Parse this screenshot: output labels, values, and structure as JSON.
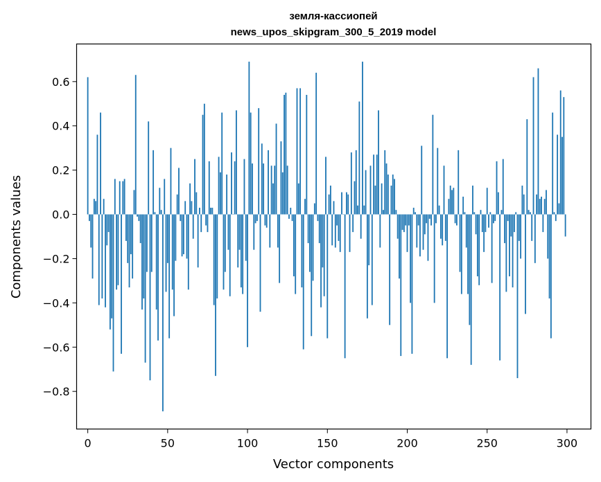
{
  "chart_data": {
    "type": "bar",
    "title_line1": "земля-кассиопей",
    "title_line2": "news_upos_skipgram_300_5_2019 model",
    "xlabel": "Vector components",
    "ylabel": "Components values",
    "xlim": [
      -7,
      315
    ],
    "ylim": [
      -0.97,
      0.77
    ],
    "xticks": [
      0,
      50,
      100,
      150,
      200,
      250,
      300
    ],
    "xtick_labels": [
      "0",
      "50",
      "100",
      "150",
      "200",
      "250",
      "300"
    ],
    "yticks": [
      -0.8,
      -0.6,
      -0.4,
      -0.2,
      0.0,
      0.2,
      0.4,
      0.6
    ],
    "ytick_labels": [
      "−0.8",
      "−0.6",
      "−0.4",
      "−0.2",
      "0.0",
      "0.2",
      "0.4",
      "0.6"
    ],
    "bar_color": "#1f77b4",
    "grid": false,
    "x": [
      0,
      1,
      2,
      3,
      4,
      5,
      6,
      7,
      8,
      9,
      10,
      11,
      12,
      13,
      14,
      15,
      16,
      17,
      18,
      19,
      20,
      21,
      22,
      23,
      24,
      25,
      26,
      27,
      28,
      29,
      30,
      31,
      32,
      33,
      34,
      35,
      36,
      37,
      38,
      39,
      40,
      41,
      42,
      43,
      44,
      45,
      46,
      47,
      48,
      49,
      50,
      51,
      52,
      53,
      54,
      55,
      56,
      57,
      58,
      59,
      60,
      61,
      62,
      63,
      64,
      65,
      66,
      67,
      68,
      69,
      70,
      71,
      72,
      73,
      74,
      75,
      76,
      77,
      78,
      79,
      80,
      81,
      82,
      83,
      84,
      85,
      86,
      87,
      88,
      89,
      90,
      91,
      92,
      93,
      94,
      95,
      96,
      97,
      98,
      99,
      100,
      101,
      102,
      103,
      104,
      105,
      106,
      107,
      108,
      109,
      110,
      111,
      112,
      113,
      114,
      115,
      116,
      117,
      118,
      119,
      120,
      121,
      122,
      123,
      124,
      125,
      126,
      127,
      128,
      129,
      130,
      131,
      132,
      133,
      134,
      135,
      136,
      137,
      138,
      139,
      140,
      141,
      142,
      143,
      144,
      145,
      146,
      147,
      148,
      149,
      150,
      151,
      152,
      153,
      154,
      155,
      156,
      157,
      158,
      159,
      160,
      161,
      162,
      163,
      164,
      165,
      166,
      167,
      168,
      169,
      170,
      171,
      172,
      173,
      174,
      175,
      176,
      177,
      178,
      179,
      180,
      181,
      182,
      183,
      184,
      185,
      186,
      187,
      188,
      189,
      190,
      191,
      192,
      193,
      194,
      195,
      196,
      197,
      198,
      199,
      200,
      201,
      202,
      203,
      204,
      205,
      206,
      207,
      208,
      209,
      210,
      211,
      212,
      213,
      214,
      215,
      216,
      217,
      218,
      219,
      220,
      221,
      222,
      223,
      224,
      225,
      226,
      227,
      228,
      229,
      230,
      231,
      232,
      233,
      234,
      235,
      236,
      237,
      238,
      239,
      240,
      241,
      242,
      243,
      244,
      245,
      246,
      247,
      248,
      249,
      250,
      251,
      252,
      253,
      254,
      255,
      256,
      257,
      258,
      259,
      260,
      261,
      262,
      263,
      264,
      265,
      266,
      267,
      268,
      269,
      270,
      271,
      272,
      273,
      274,
      275,
      276,
      277,
      278,
      279,
      280,
      281,
      282,
      283,
      284,
      285,
      286,
      287,
      288,
      289,
      290,
      291,
      292,
      293,
      294,
      295,
      296,
      297,
      298,
      299
    ],
    "values": [
      0.62,
      -0.03,
      -0.15,
      -0.29,
      0.07,
      0.06,
      0.36,
      -0.41,
      0.46,
      -0.38,
      0.07,
      -0.42,
      -0.14,
      -0.08,
      -0.52,
      -0.47,
      -0.71,
      0.16,
      -0.34,
      -0.32,
      0.15,
      -0.63,
      0.15,
      0.16,
      -0.12,
      -0.22,
      -0.33,
      -0.18,
      -0.29,
      0.11,
      0.63,
      -0.01,
      -0.03,
      -0.13,
      -0.43,
      -0.38,
      -0.67,
      -0.26,
      0.42,
      -0.75,
      -0.26,
      0.29,
      0.01,
      -0.43,
      -0.57,
      0.12,
      0.02,
      -0.89,
      0.16,
      -0.35,
      -0.22,
      -0.56,
      0.3,
      -0.34,
      -0.46,
      -0.21,
      0.09,
      0.21,
      -0.03,
      -0.19,
      -0.18,
      0.06,
      -0.2,
      -0.34,
      0.14,
      0.06,
      -0.11,
      0.25,
      0.1,
      -0.24,
      0.03,
      -0.08,
      0.45,
      0.5,
      -0.05,
      -0.08,
      0.24,
      0.03,
      0.03,
      -0.41,
      -0.73,
      -0.38,
      0.26,
      0.19,
      0.46,
      -0.34,
      -0.26,
      0.18,
      -0.16,
      -0.37,
      0.28,
      0.0,
      0.24,
      0.47,
      -0.24,
      -0.16,
      -0.33,
      -0.36,
      0.25,
      -0.21,
      -0.6,
      0.69,
      0.46,
      0.23,
      -0.16,
      -0.04,
      -0.03,
      0.48,
      -0.44,
      0.32,
      0.23,
      -0.05,
      -0.06,
      0.29,
      -0.15,
      0.22,
      0.14,
      0.22,
      0.41,
      -0.15,
      -0.31,
      0.33,
      0.19,
      0.54,
      0.55,
      0.22,
      -0.02,
      0.03,
      -0.03,
      -0.28,
      -0.36,
      0.57,
      0.14,
      0.57,
      -0.33,
      -0.61,
      0.07,
      0.54,
      -0.13,
      -0.26,
      -0.55,
      -0.3,
      0.05,
      0.64,
      -0.03,
      -0.13,
      -0.42,
      -0.24,
      -0.37,
      0.26,
      -0.56,
      0.09,
      0.13,
      -0.14,
      0.06,
      -0.15,
      -0.05,
      -0.12,
      -0.17,
      0.1,
      0.0,
      -0.65,
      0.1,
      0.09,
      -0.17,
      0.28,
      -0.08,
      0.15,
      0.29,
      0.04,
      0.51,
      -0.11,
      0.69,
      0.04,
      0.2,
      -0.47,
      -0.23,
      0.22,
      -0.41,
      0.27,
      0.13,
      0.27,
      0.47,
      -0.15,
      0.14,
      0.02,
      0.29,
      0.23,
      0.18,
      -0.5,
      0.13,
      0.18,
      0.16,
      0.02,
      -0.11,
      -0.29,
      -0.64,
      -0.07,
      -0.08,
      -0.05,
      -0.17,
      -0.05,
      -0.4,
      -0.63,
      0.03,
      0.01,
      -0.15,
      -0.05,
      -0.19,
      0.31,
      -0.16,
      -0.09,
      -0.04,
      -0.21,
      -0.02,
      -0.05,
      0.45,
      -0.4,
      -0.04,
      0.3,
      0.04,
      -0.11,
      -0.14,
      0.22,
      -0.12,
      -0.65,
      0.07,
      0.13,
      0.11,
      0.12,
      -0.04,
      -0.05,
      0.29,
      -0.26,
      -0.36,
      0.08,
      0.01,
      -0.15,
      -0.36,
      -0.5,
      -0.68,
      0.13,
      0.01,
      -0.09,
      -0.28,
      -0.32,
      0.02,
      -0.08,
      -0.17,
      -0.08,
      0.12,
      -0.06,
      0.01,
      -0.31,
      -0.04,
      -0.03,
      0.24,
      0.1,
      -0.66,
      0.02,
      0.25,
      -0.13,
      -0.35,
      -0.03,
      -0.28,
      -0.1,
      -0.33,
      -0.08,
      0.01,
      -0.74,
      -0.12,
      -0.2,
      0.13,
      0.09,
      -0.45,
      0.43,
      0.02,
      0.01,
      -0.12,
      0.62,
      -0.22,
      0.09,
      0.66,
      0.07,
      0.08,
      -0.08,
      0.07,
      0.11,
      -0.2,
      -0.38,
      -0.56,
      0.46,
      0.01,
      -0.03,
      0.36,
      0.05,
      0.56,
      0.35,
      0.53,
      -0.1
    ]
  }
}
